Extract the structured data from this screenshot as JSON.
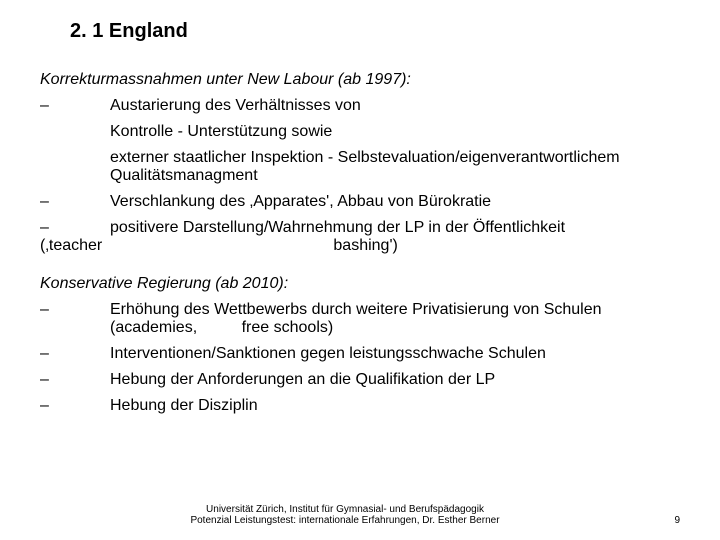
{
  "title": "2. 1 England",
  "section1": {
    "heading": "Korrekturmassnahmen unter New Labour (ab 1997):",
    "item1_a": "Austarierung des Verhältnisses von",
    "item1_b": "Kontrolle - Unterstützung sowie",
    "item1_c": "externer staatlicher Inspektion - Selbstevaluation/eigenverantwortlichem Qualitätsmanagment",
    "item2": "Verschlankung des ‚Apparates', Abbau von Bürokratie",
    "item3_a": "positivere Darstellung/Wahrnehmung der LP in der Öffentlichkeit",
    "item3_b": "(‚teacher                                                    bashing')"
  },
  "section2": {
    "heading": "Konservative Regierung (ab 2010):",
    "item1": "Erhöhung des Wettbewerbs durch weitere Privatisierung von Schulen                                         (academies,          free schools)",
    "item2": "Interventionen/Sanktionen gegen leistungsschwache Schulen",
    "item3": "Hebung der Anforderungen an die Qualifikation der LP",
    "item4": "Hebung der Disziplin"
  },
  "footer": {
    "line1": "Universität Zürich, Institut für Gymnasial- und Berufspädagogik",
    "line2": "Potenzial Leistungstest: internationale Erfahrungen, Dr. Esther Berner",
    "page": "9"
  },
  "colors": {
    "background": "#ffffff",
    "text": "#000000"
  },
  "dash": "–"
}
